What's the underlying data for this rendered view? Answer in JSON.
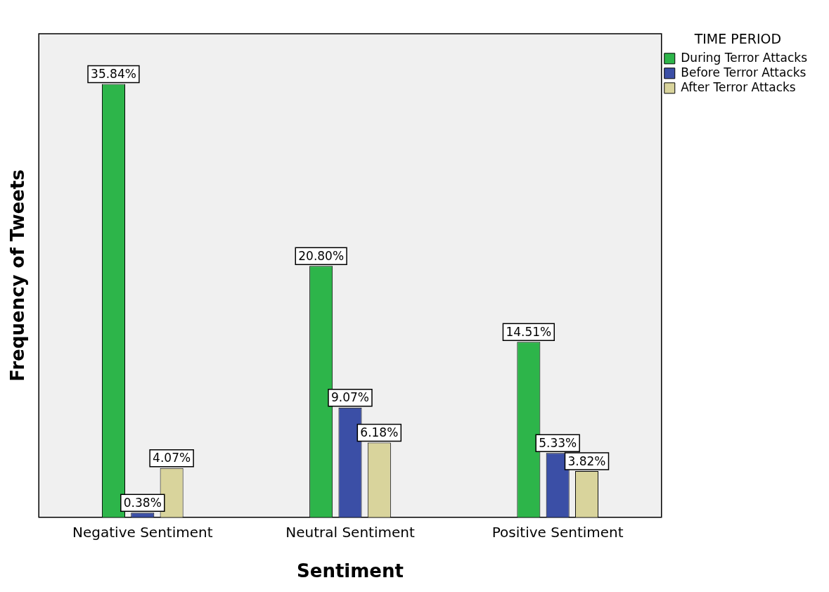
{
  "chart_data": {
    "type": "bar",
    "xlabel": "Sentiment",
    "ylabel": "Frequency of Tweets",
    "legend_title": "TIME PERIOD",
    "categories": [
      "Negative Sentiment",
      "Neutral Sentiment",
      "Positive Sentiment"
    ],
    "series": [
      {
        "name": "During Terror Attacks",
        "color": "#2db54a",
        "values": [
          35.84,
          20.8,
          14.51
        ],
        "value_labels": [
          "35.84%",
          "20.80%",
          "14.51%"
        ]
      },
      {
        "name": "Before Terror Attacks",
        "color": "#3b4fa6",
        "values": [
          0.38,
          9.07,
          5.33
        ],
        "value_labels": [
          "0.38%",
          "9.07%",
          "5.33%"
        ]
      },
      {
        "name": "After Terror Attacks",
        "color": "#d9d49c",
        "values": [
          4.07,
          6.18,
          3.82
        ],
        "value_labels": [
          "4.07%",
          "6.18%",
          "3.82%"
        ]
      }
    ],
    "legend": "top right",
    "grid": false
  }
}
